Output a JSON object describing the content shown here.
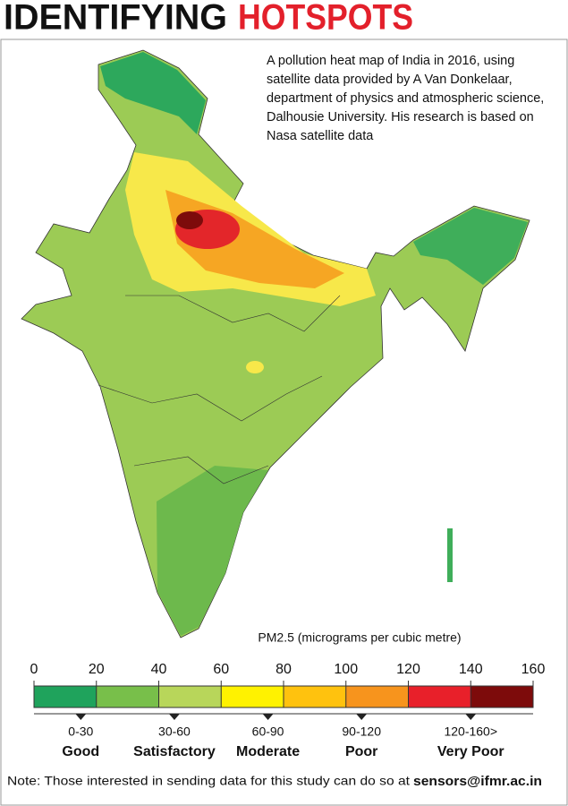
{
  "header": {
    "title_part1": "IDENTIFYING",
    "title_part2": "HOTSPOTS"
  },
  "description": "A pollution heat map of India in 2016, using satellite data provided by A Van Donkelaar, department of physics and atmospheric science, Dalhousie University. His research is based on Nasa satellite data",
  "legend": {
    "title": "PM2.5 (micrograms per cubic metre)",
    "scale_min": 0,
    "scale_max": 160,
    "ticks": [
      0,
      20,
      40,
      60,
      80,
      100,
      120,
      140,
      160
    ],
    "segments": [
      {
        "from": 0,
        "to": 20,
        "color": "#1fa35c"
      },
      {
        "from": 20,
        "to": 40,
        "color": "#78bf4a"
      },
      {
        "from": 40,
        "to": 60,
        "color": "#b8d65a"
      },
      {
        "from": 60,
        "to": 80,
        "color": "#fff200"
      },
      {
        "from": 80,
        "to": 100,
        "color": "#ffc20e"
      },
      {
        "from": 100,
        "to": 120,
        "color": "#f7941d"
      },
      {
        "from": 120,
        "to": 140,
        "color": "#e8202a"
      },
      {
        "from": 140,
        "to": 160,
        "color": "#7d0b0b"
      }
    ],
    "categories": [
      {
        "range": "0-30",
        "label": "Good",
        "value": 15
      },
      {
        "range": "30-60",
        "label": "Satisfactory",
        "value": 45
      },
      {
        "range": "60-90",
        "label": "Moderate",
        "value": 75
      },
      {
        "range": "90-120",
        "label": "Poor",
        "value": 105
      },
      {
        "range": "120-160>",
        "label": "Very Poor",
        "value": 140
      }
    ]
  },
  "note": {
    "text": "Note: Those interested in sending data for this study can do so at",
    "email": "sensors@ifmr.ac.in"
  }
}
